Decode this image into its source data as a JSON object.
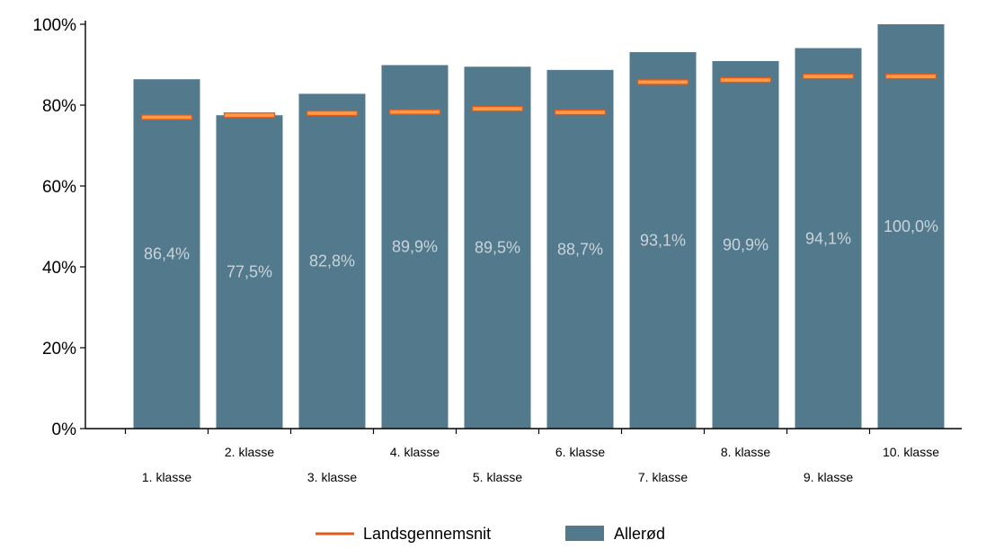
{
  "chart_data": {
    "type": "bar",
    "title": "",
    "xlabel": "",
    "ylabel": "",
    "ylim": [
      0,
      100
    ],
    "yticks": [
      0,
      20,
      40,
      60,
      80,
      100
    ],
    "ytick_labels": [
      "0%",
      "20%",
      "40%",
      "60%",
      "80%",
      "100%"
    ],
    "categories": [
      "1. klasse",
      "2. klasse",
      "3. klasse",
      "4. klasse",
      "5. klasse",
      "6. klasse",
      "7. klasse",
      "8. klasse",
      "9. klasse",
      "10. klasse"
    ],
    "series": [
      {
        "name": "Allerød",
        "kind": "bar",
        "values": [
          86.4,
          77.5,
          82.8,
          89.9,
          89.5,
          88.7,
          93.1,
          90.9,
          94.1,
          100.0
        ],
        "value_labels": [
          "86,4%",
          "77,5%",
          "82,8%",
          "89,9%",
          "89,5%",
          "88,7%",
          "93,1%",
          "90,9%",
          "94,1%",
          "100,0%"
        ]
      },
      {
        "name": "Landsgennemsnit",
        "kind": "marker",
        "values": [
          77.0,
          77.5,
          78.0,
          78.3,
          79.1,
          78.2,
          85.7,
          86.2,
          87.1,
          87.1
        ]
      }
    ],
    "grid": false,
    "legend": "bottom-center",
    "colors": {
      "bar": "#52798c",
      "marker": "#e05a1a",
      "marker_fill": "#ff9a4a",
      "data_label": "#c8d4da",
      "axis": "#000000"
    }
  }
}
